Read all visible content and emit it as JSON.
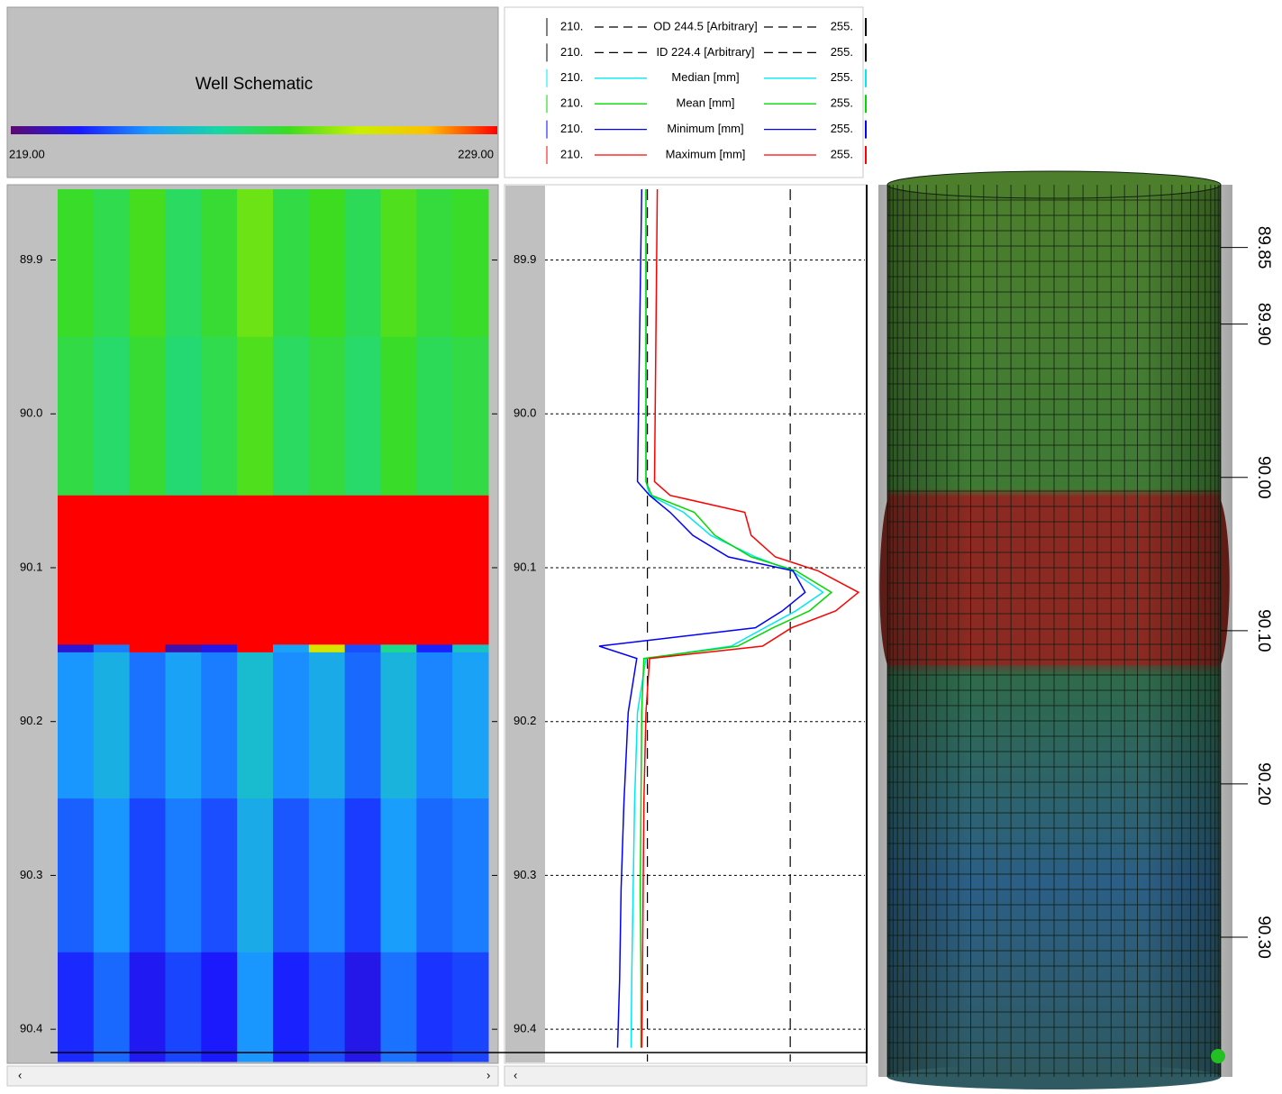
{
  "chart_data": [
    {
      "type": "heatmap",
      "title": "Well Schematic",
      "zlim": [
        219,
        229
      ],
      "zticks": [
        {
          "value": 219,
          "label": "219.00"
        },
        {
          "value": 229,
          "label": "229.00"
        }
      ],
      "colorscale": [
        "#5b0a6e",
        "#1a1aff",
        "#1a9cff",
        "#18d8a0",
        "#3ddc20",
        "#c8f000",
        "#ffc000",
        "#ff0000"
      ],
      "ylim": [
        89.854,
        90.421
      ],
      "yticks": [
        89.9,
        {
          "value": 90,
          "label": "90.0"
        },
        90.1,
        90.2,
        90.3,
        90.4
      ],
      "y_bins": [
        89.854,
        89.95,
        90.053,
        90.15,
        90.155,
        90.25,
        90.35,
        90.421
      ],
      "values": [
        [
          224.6,
          224.2,
          224.8,
          224.0,
          224.5,
          225.2,
          224.3,
          224.7,
          224.1,
          224.9,
          224.4,
          224.6
        ],
        [
          224.3,
          223.9,
          224.5,
          223.8,
          224.2,
          224.9,
          224.0,
          224.4,
          223.9,
          224.6,
          224.1,
          224.3
        ],
        [
          231,
          231,
          231,
          231,
          231,
          231,
          231,
          231,
          231,
          231,
          231,
          231
        ],
        [
          220.0,
          221.5,
          229.5,
          219.6,
          220.2,
          229.8,
          222.0,
          226.5,
          221.0,
          223.5,
          220.5,
          222.8
        ],
        [
          221.8,
          222.3,
          221.4,
          222.0,
          221.5,
          222.6,
          221.7,
          222.2,
          221.3,
          222.4,
          221.6,
          222.0
        ],
        [
          221.2,
          221.8,
          220.9,
          221.5,
          221.0,
          222.2,
          221.1,
          221.6,
          220.8,
          221.9,
          221.3,
          221.5
        ],
        [
          220.6,
          221.3,
          220.3,
          220.9,
          220.4,
          221.8,
          220.5,
          221.0,
          220.2,
          221.4,
          220.7,
          220.9
        ]
      ]
    },
    {
      "type": "line",
      "x": [
        89.854,
        90.044,
        90.053,
        90.064,
        90.079,
        90.093,
        90.102,
        90.116,
        90.128,
        90.139,
        90.151,
        90.159,
        90.194,
        90.252,
        90.309,
        90.367,
        90.412
      ],
      "xlim": [
        89.854,
        90.421
      ],
      "xticks": [
        89.9,
        {
          "value": 90,
          "label": "90.0"
        },
        90.1,
        90.2,
        90.3,
        90.4
      ],
      "ylim": [
        210,
        255
      ],
      "yticks": [
        {
          "value": 210,
          "label": "210."
        },
        {
          "value": 255,
          "label": "255."
        }
      ],
      "grid": true,
      "reference_lines": [
        {
          "name": "OD 244.5 [Arbitrary]",
          "value": 244.5,
          "color": "#000000"
        },
        {
          "name": "ID 224.4 [Arbitrary]",
          "value": 224.4,
          "color": "#000000"
        }
      ],
      "series": [
        {
          "name": "Median [mm]",
          "color": "#00e8f0",
          "values": [
            224.2,
            224.2,
            224.7,
            229.5,
            233.3,
            239.6,
            244.7,
            249.1,
            245.3,
            240.9,
            236.2,
            224.2,
            223.0,
            222.6,
            222.4,
            222.2,
            222.1
          ]
        },
        {
          "name": "Mean [mm]",
          "color": "#00d800",
          "values": [
            224.2,
            224.2,
            225.0,
            231.0,
            233.9,
            239.0,
            245.3,
            250.3,
            247.2,
            242.1,
            237.1,
            223.9,
            223.6,
            223.5,
            223.4,
            223.5,
            223.5
          ]
        },
        {
          "name": "Minimum [mm]",
          "color": "#0000ff",
          "values": [
            223.6,
            223.0,
            224.7,
            227.6,
            230.8,
            235.8,
            244.9,
            246.6,
            243.4,
            239.6,
            217.6,
            222.9,
            221.7,
            221.1,
            220.7,
            220.5,
            220.2
          ]
        },
        {
          "name": "Maximum [mm]",
          "color": "#ff0000",
          "values": [
            225.8,
            225.4,
            227.6,
            238.1,
            239.0,
            242.4,
            248.4,
            254.1,
            250.9,
            244.7,
            240.6,
            224.7,
            224.2,
            223.9,
            223.8,
            223.7,
            223.6
          ]
        }
      ]
    },
    {
      "type": "3d",
      "ylim": [
        89.812,
        90.397
      ],
      "yticks": [
        {
          "value": 89.85,
          "label": "89.85"
        },
        {
          "value": 89.9,
          "label": "89.90"
        },
        {
          "value": 90,
          "label": "90.00"
        },
        {
          "value": 90.1,
          "label": "90.10"
        },
        {
          "value": 90.2,
          "label": "90.20"
        },
        {
          "value": 90.3,
          "label": "90.30"
        }
      ]
    }
  ]
}
